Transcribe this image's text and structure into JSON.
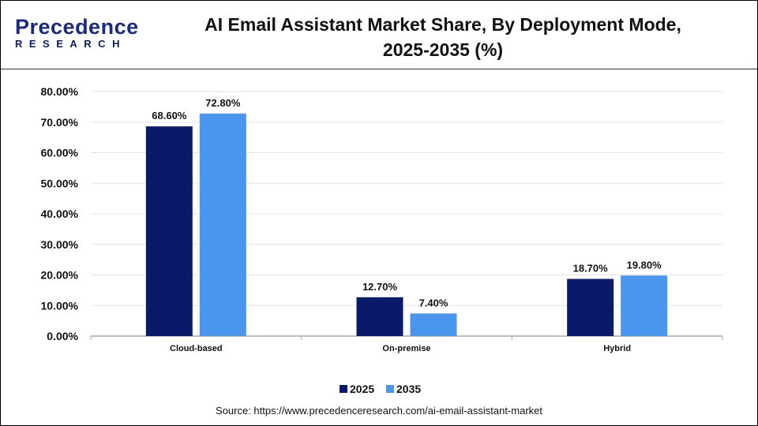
{
  "logo": {
    "line1": "Precedence",
    "line2": "RESEARCH"
  },
  "chart_data": {
    "type": "bar",
    "title": "AI Email Assistant Market Share, By Deployment Mode, 2025-2035 (%)",
    "title_lines": [
      "AI Email Assistant Market Share, By Deployment Mode,",
      "2025-2035 (%)"
    ],
    "categories": [
      "Cloud-based",
      "On-premise",
      "Hybrid"
    ],
    "series": [
      {
        "name": "2025",
        "values": [
          68.6,
          12.7,
          18.7
        ],
        "labels": [
          "68.60%",
          "12.70%",
          "18.70%"
        ],
        "color": "#0a1a6b"
      },
      {
        "name": "2035",
        "values": [
          72.8,
          7.4,
          19.8
        ],
        "labels": [
          "72.80%",
          "7.40%",
          "19.80%"
        ],
        "color": "#4a96ee"
      }
    ],
    "ylim": [
      0,
      80
    ],
    "yticks": [
      "0.00%",
      "10.00%",
      "20.00%",
      "30.00%",
      "40.00%",
      "50.00%",
      "60.00%",
      "70.00%",
      "80.00%"
    ],
    "grid": true,
    "legend": "bottom",
    "xlabel": "",
    "ylabel": ""
  },
  "source": "Source: https://www.precedenceresearch.com/ai-email-assistant-market"
}
